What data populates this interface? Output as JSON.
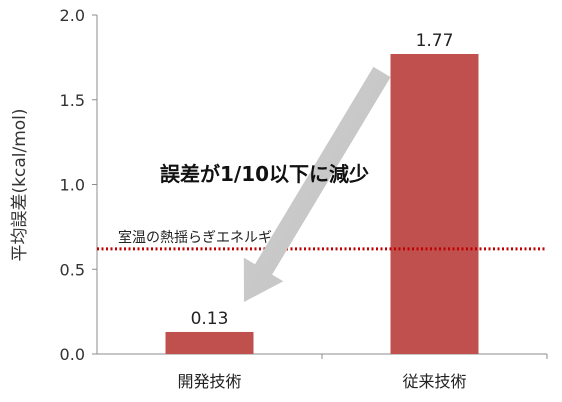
{
  "chart_data": {
    "type": "bar",
    "categories": [
      "開発技術",
      "従来技術"
    ],
    "values": [
      0.13,
      1.77
    ],
    "value_labels": [
      "0.13",
      "1.77"
    ],
    "ylabel": "平均誤差(kcal/mol)",
    "ylim": [
      0,
      2.0
    ],
    "yticks": [
      "0.0",
      "0.5",
      "1.0",
      "1.5",
      "2.0"
    ],
    "grid": false,
    "bar_color": "#c0504d",
    "reference_line": {
      "value": 0.62,
      "label": "室温の熱揺らぎエネルギー",
      "color": "#c00000",
      "style": "dotted"
    },
    "annotation": {
      "text": "誤差が1/10以下に減少",
      "arrow_from": "従来技術",
      "arrow_to": "開発技術",
      "arrow_color": "#c8c8c8"
    }
  }
}
